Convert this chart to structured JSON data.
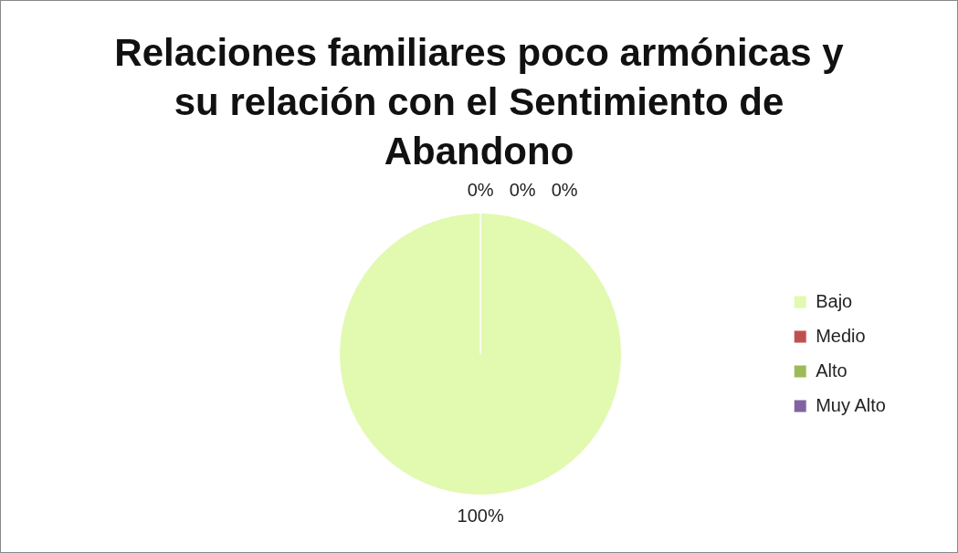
{
  "chart_data": {
    "type": "pie",
    "title": "Relaciones familiares poco armónicas y su relación con el Sentimiento de Abandono",
    "categories": [
      "Bajo",
      "Medio",
      "Alto",
      "Muy Alto"
    ],
    "values": [
      100,
      0,
      0,
      0
    ],
    "colors": [
      "#e2f9b0",
      "#c0504d",
      "#9bbb59",
      "#8064a2"
    ],
    "value_labels": [
      "100%",
      "0%",
      "0%",
      "0%"
    ],
    "legend": "right"
  }
}
